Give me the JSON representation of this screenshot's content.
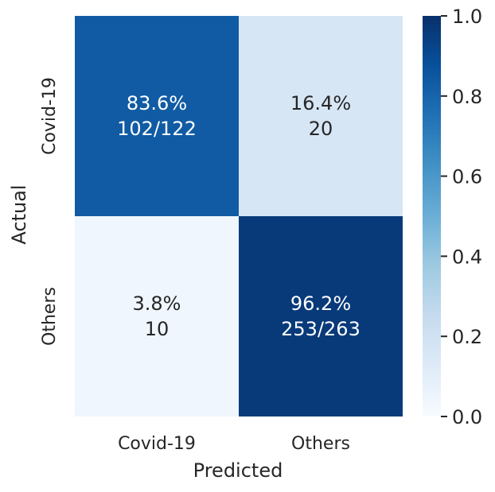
{
  "chart_data": {
    "type": "heatmap",
    "x_categories": [
      "Covid-19",
      "Others"
    ],
    "y_categories": [
      "Covid-19",
      "Others"
    ],
    "values": [
      [
        0.836,
        0.164
      ],
      [
        0.038,
        0.962
      ]
    ],
    "cell_labels": [
      [
        [
          "83.6%",
          "102/122"
        ],
        [
          "16.4%",
          "20"
        ]
      ],
      [
        [
          "3.8%",
          "10"
        ],
        [
          "96.2%",
          "253/263"
        ]
      ]
    ],
    "xlabel": "Predicted",
    "ylabel": "Actual",
    "colorbar": {
      "range": [
        0.0,
        1.0
      ],
      "ticks": [
        "0.0",
        "0.2",
        "0.4",
        "0.6",
        "0.8",
        "1.0"
      ],
      "colormap": [
        "#f7fbff",
        "#deebf7",
        "#c6dbef",
        "#9ecae1",
        "#6baed6",
        "#4292c6",
        "#2171b5",
        "#08519c",
        "#08306b"
      ]
    },
    "text_colors": {
      "dark_background": "#ffffff",
      "light_background": "#262626"
    }
  }
}
